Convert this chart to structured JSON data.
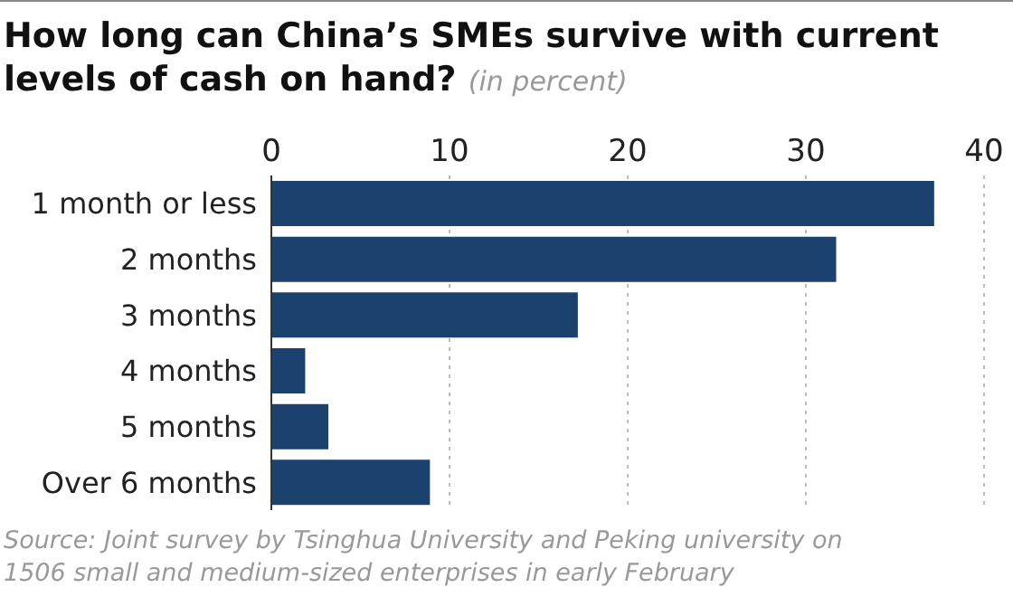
{
  "chart_data": {
    "type": "bar",
    "orientation": "horizontal",
    "title": "How long can China’s SMEs survive with current levels of cash on hand?",
    "subtitle": "(in percent)",
    "categories": [
      "1 month or less",
      "2 months",
      "3 months",
      "4 months",
      "5 months",
      "Over 6 months"
    ],
    "values": [
      37.2,
      31.7,
      17.2,
      1.9,
      3.2,
      8.9
    ],
    "color": "#1b416f",
    "xlim": [
      0,
      40
    ],
    "xticks": [
      0,
      10,
      20,
      30,
      40
    ],
    "grid": "x",
    "annotations": [
      "Source: Joint survey by Tsinghua University and Peking university on 1506 small and medium-sized enterprises in early February"
    ]
  }
}
